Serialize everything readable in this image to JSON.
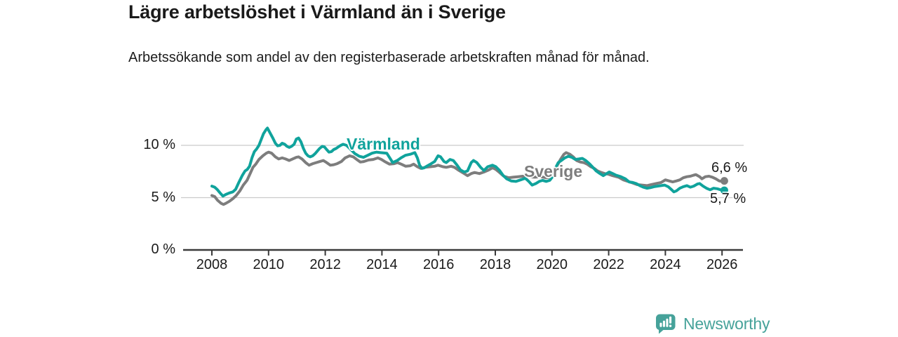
{
  "title": "Lägre arbetslöshet i Värmland än i Sverige",
  "subtitle": "Arbetssökande som andel av den registerbaserade arbetskraften månad för månad.",
  "footer": {
    "brand": "Newsworthy"
  },
  "colors": {
    "varmland": "#10a39c",
    "sverige": "#7d7d7d",
    "grid": "#cbcbcb",
    "axis": "#3a3a3a",
    "text": "#1a1a1a",
    "brand_teal": "#46a29a"
  },
  "chart_data": {
    "type": "line",
    "title": "Lägre arbetslöshet i Värmland än i Sverige",
    "xlabel": "",
    "ylabel": "Arbetssökande som andel av den registerbaserade arbetskraften",
    "xlim": [
      2007.9,
      2026.8
    ],
    "ylim": [
      0,
      12.5
    ],
    "grid": "horizontal",
    "legend_position": "inline-labels",
    "x_ticks": [
      2008,
      2010,
      2012,
      2014,
      2016,
      2018,
      2020,
      2022,
      2024,
      2026
    ],
    "y_ticks": [
      {
        "value": 0,
        "label": "0 %"
      },
      {
        "value": 5,
        "label": "5 %"
      },
      {
        "value": 10,
        "label": "10 %"
      }
    ],
    "series": [
      {
        "name": "Värmland",
        "color": "#10a39c",
        "end_label": "5,7 %",
        "last_value": 5.7,
        "points": [
          [
            2008.0,
            6.1
          ],
          [
            2008.1,
            6.0
          ],
          [
            2008.18,
            5.8
          ],
          [
            2008.29,
            5.45
          ],
          [
            2008.39,
            5.15
          ],
          [
            2008.49,
            5.3
          ],
          [
            2008.62,
            5.45
          ],
          [
            2008.74,
            5.55
          ],
          [
            2008.84,
            5.8
          ],
          [
            2008.95,
            6.45
          ],
          [
            2009.07,
            7.1
          ],
          [
            2009.17,
            7.55
          ],
          [
            2009.25,
            7.7
          ],
          [
            2009.33,
            8.0
          ],
          [
            2009.42,
            8.85
          ],
          [
            2009.5,
            9.4
          ],
          [
            2009.58,
            9.65
          ],
          [
            2009.66,
            10.0
          ],
          [
            2009.74,
            10.55
          ],
          [
            2009.82,
            11.1
          ],
          [
            2009.91,
            11.5
          ],
          [
            2009.96,
            11.65
          ],
          [
            2010.07,
            11.1
          ],
          [
            2010.15,
            10.7
          ],
          [
            2010.24,
            10.2
          ],
          [
            2010.32,
            9.95
          ],
          [
            2010.4,
            10.0
          ],
          [
            2010.48,
            10.2
          ],
          [
            2010.57,
            10.1
          ],
          [
            2010.65,
            9.9
          ],
          [
            2010.73,
            9.8
          ],
          [
            2010.81,
            9.9
          ],
          [
            2010.9,
            10.1
          ],
          [
            2010.98,
            10.6
          ],
          [
            2011.06,
            10.7
          ],
          [
            2011.14,
            10.35
          ],
          [
            2011.23,
            9.7
          ],
          [
            2011.31,
            9.25
          ],
          [
            2011.39,
            9.0
          ],
          [
            2011.47,
            8.9
          ],
          [
            2011.56,
            9.0
          ],
          [
            2011.64,
            9.2
          ],
          [
            2011.72,
            9.45
          ],
          [
            2011.8,
            9.7
          ],
          [
            2011.89,
            9.9
          ],
          [
            2011.97,
            9.85
          ],
          [
            2012.05,
            9.6
          ],
          [
            2012.13,
            9.35
          ],
          [
            2012.22,
            9.4
          ],
          [
            2012.3,
            9.6
          ],
          [
            2012.38,
            9.7
          ],
          [
            2012.46,
            9.85
          ],
          [
            2012.55,
            10.0
          ],
          [
            2012.63,
            10.1
          ],
          [
            2012.75,
            10.0
          ],
          [
            2012.9,
            9.6
          ],
          [
            2013.05,
            9.2
          ],
          [
            2013.2,
            8.95
          ],
          [
            2013.35,
            8.85
          ],
          [
            2013.5,
            9.05
          ],
          [
            2013.65,
            9.25
          ],
          [
            2013.8,
            9.35
          ],
          [
            2013.95,
            9.3
          ],
          [
            2014.17,
            9.25
          ],
          [
            2014.38,
            8.35
          ],
          [
            2014.54,
            8.55
          ],
          [
            2014.67,
            8.8
          ],
          [
            2014.83,
            9.05
          ],
          [
            2015.0,
            9.15
          ],
          [
            2015.16,
            9.3
          ],
          [
            2015.25,
            8.8
          ],
          [
            2015.33,
            8.1
          ],
          [
            2015.41,
            7.8
          ],
          [
            2015.49,
            7.85
          ],
          [
            2015.61,
            8.05
          ],
          [
            2015.74,
            8.25
          ],
          [
            2015.86,
            8.45
          ],
          [
            2015.98,
            9.0
          ],
          [
            2016.07,
            8.9
          ],
          [
            2016.19,
            8.45
          ],
          [
            2016.27,
            8.35
          ],
          [
            2016.4,
            8.65
          ],
          [
            2016.52,
            8.55
          ],
          [
            2016.65,
            8.1
          ],
          [
            2016.77,
            7.65
          ],
          [
            2016.9,
            7.45
          ],
          [
            2017.02,
            7.55
          ],
          [
            2017.15,
            8.35
          ],
          [
            2017.23,
            8.55
          ],
          [
            2017.35,
            8.35
          ],
          [
            2017.48,
            7.9
          ],
          [
            2017.6,
            7.6
          ],
          [
            2017.73,
            7.95
          ],
          [
            2017.9,
            8.1
          ],
          [
            2018.02,
            7.95
          ],
          [
            2018.15,
            7.6
          ],
          [
            2018.27,
            7.15
          ],
          [
            2018.4,
            6.8
          ],
          [
            2018.56,
            6.6
          ],
          [
            2018.73,
            6.55
          ],
          [
            2018.89,
            6.7
          ],
          [
            2019.06,
            6.85
          ],
          [
            2019.18,
            6.55
          ],
          [
            2019.3,
            6.2
          ],
          [
            2019.43,
            6.35
          ],
          [
            2019.55,
            6.55
          ],
          [
            2019.67,
            6.65
          ],
          [
            2019.8,
            6.55
          ],
          [
            2019.92,
            6.65
          ],
          [
            2020.02,
            7.0
          ],
          [
            2020.12,
            7.8
          ],
          [
            2020.22,
            8.35
          ],
          [
            2020.33,
            8.55
          ],
          [
            2020.45,
            8.8
          ],
          [
            2020.58,
            8.95
          ],
          [
            2020.7,
            8.85
          ],
          [
            2020.82,
            8.65
          ],
          [
            2020.95,
            8.7
          ],
          [
            2021.07,
            8.75
          ],
          [
            2021.19,
            8.55
          ],
          [
            2021.32,
            8.25
          ],
          [
            2021.44,
            7.9
          ],
          [
            2021.56,
            7.55
          ],
          [
            2021.69,
            7.3
          ],
          [
            2021.81,
            7.1
          ],
          [
            2021.93,
            7.3
          ],
          [
            2022.02,
            7.45
          ],
          [
            2022.14,
            7.3
          ],
          [
            2022.26,
            7.15
          ],
          [
            2022.43,
            7.0
          ],
          [
            2022.59,
            6.8
          ],
          [
            2022.72,
            6.5
          ],
          [
            2022.85,
            6.45
          ],
          [
            2022.97,
            6.35
          ],
          [
            2023.1,
            6.15
          ],
          [
            2023.22,
            6.0
          ],
          [
            2023.35,
            5.9
          ],
          [
            2023.47,
            5.95
          ],
          [
            2023.6,
            6.05
          ],
          [
            2023.72,
            6.1
          ],
          [
            2023.85,
            6.15
          ],
          [
            2023.97,
            6.2
          ],
          [
            2024.1,
            6.05
          ],
          [
            2024.22,
            5.75
          ],
          [
            2024.3,
            5.55
          ],
          [
            2024.39,
            5.65
          ],
          [
            2024.51,
            5.9
          ],
          [
            2024.63,
            6.05
          ],
          [
            2024.76,
            6.15
          ],
          [
            2024.88,
            6.0
          ],
          [
            2025.0,
            6.1
          ],
          [
            2025.13,
            6.3
          ],
          [
            2025.21,
            6.35
          ],
          [
            2025.33,
            6.1
          ],
          [
            2025.45,
            5.9
          ],
          [
            2025.58,
            5.75
          ],
          [
            2025.7,
            5.9
          ],
          [
            2025.83,
            5.85
          ],
          [
            2025.95,
            5.75
          ],
          [
            2026.08,
            5.7
          ]
        ]
      },
      {
        "name": "Sverige",
        "color": "#7d7d7d",
        "end_label": "6,6 %",
        "last_value": 6.6,
        "points": [
          [
            2008.0,
            5.2
          ],
          [
            2008.1,
            5.1
          ],
          [
            2008.2,
            4.75
          ],
          [
            2008.33,
            4.45
          ],
          [
            2008.41,
            4.35
          ],
          [
            2008.49,
            4.45
          ],
          [
            2008.62,
            4.65
          ],
          [
            2008.74,
            4.9
          ],
          [
            2008.86,
            5.2
          ],
          [
            2008.99,
            5.65
          ],
          [
            2009.11,
            6.2
          ],
          [
            2009.24,
            6.65
          ],
          [
            2009.36,
            7.35
          ],
          [
            2009.45,
            7.9
          ],
          [
            2009.55,
            8.2
          ],
          [
            2009.66,
            8.65
          ],
          [
            2009.8,
            9.0
          ],
          [
            2009.92,
            9.25
          ],
          [
            2010.0,
            9.35
          ],
          [
            2010.11,
            9.25
          ],
          [
            2010.24,
            8.9
          ],
          [
            2010.36,
            8.7
          ],
          [
            2010.48,
            8.8
          ],
          [
            2010.6,
            8.7
          ],
          [
            2010.73,
            8.55
          ],
          [
            2010.85,
            8.7
          ],
          [
            2010.98,
            8.85
          ],
          [
            2011.06,
            8.9
          ],
          [
            2011.18,
            8.7
          ],
          [
            2011.31,
            8.35
          ],
          [
            2011.43,
            8.1
          ],
          [
            2011.56,
            8.25
          ],
          [
            2011.68,
            8.35
          ],
          [
            2011.81,
            8.45
          ],
          [
            2011.93,
            8.55
          ],
          [
            2012.05,
            8.35
          ],
          [
            2012.18,
            8.1
          ],
          [
            2012.3,
            8.15
          ],
          [
            2012.42,
            8.25
          ],
          [
            2012.57,
            8.45
          ],
          [
            2012.7,
            8.8
          ],
          [
            2012.86,
            9.0
          ],
          [
            2012.99,
            8.9
          ],
          [
            2013.11,
            8.65
          ],
          [
            2013.24,
            8.4
          ],
          [
            2013.36,
            8.45
          ],
          [
            2013.53,
            8.6
          ],
          [
            2013.69,
            8.65
          ],
          [
            2013.86,
            8.8
          ],
          [
            2013.98,
            8.65
          ],
          [
            2014.1,
            8.45
          ],
          [
            2014.27,
            8.2
          ],
          [
            2014.43,
            8.25
          ],
          [
            2014.55,
            8.35
          ],
          [
            2014.68,
            8.2
          ],
          [
            2014.84,
            8.0
          ],
          [
            2015.0,
            8.05
          ],
          [
            2015.12,
            8.2
          ],
          [
            2015.25,
            7.95
          ],
          [
            2015.37,
            7.8
          ],
          [
            2015.53,
            7.9
          ],
          [
            2015.7,
            7.95
          ],
          [
            2015.86,
            8.0
          ],
          [
            2015.98,
            8.1
          ],
          [
            2016.15,
            7.95
          ],
          [
            2016.27,
            7.9
          ],
          [
            2016.44,
            8.0
          ],
          [
            2016.56,
            7.9
          ],
          [
            2016.72,
            7.6
          ],
          [
            2016.9,
            7.3
          ],
          [
            2017.02,
            7.1
          ],
          [
            2017.15,
            7.3
          ],
          [
            2017.27,
            7.4
          ],
          [
            2017.44,
            7.3
          ],
          [
            2017.6,
            7.45
          ],
          [
            2017.77,
            7.65
          ],
          [
            2017.9,
            7.85
          ],
          [
            2018.02,
            7.7
          ],
          [
            2018.15,
            7.4
          ],
          [
            2018.3,
            7.05
          ],
          [
            2018.47,
            6.9
          ],
          [
            2018.63,
            6.95
          ],
          [
            2018.8,
            7.0
          ],
          [
            2018.96,
            7.05
          ],
          [
            2019.18,
            7.0
          ],
          [
            2019.39,
            6.95
          ],
          [
            2019.59,
            7.0
          ],
          [
            2019.8,
            6.9
          ],
          [
            2019.96,
            6.95
          ],
          [
            2020.06,
            7.3
          ],
          [
            2020.17,
            8.0
          ],
          [
            2020.3,
            8.65
          ],
          [
            2020.42,
            9.15
          ],
          [
            2020.5,
            9.3
          ],
          [
            2020.63,
            9.15
          ],
          [
            2020.75,
            8.9
          ],
          [
            2020.87,
            8.55
          ],
          [
            2021.0,
            8.4
          ],
          [
            2021.12,
            8.35
          ],
          [
            2021.24,
            8.2
          ],
          [
            2021.37,
            7.95
          ],
          [
            2021.49,
            7.8
          ],
          [
            2021.61,
            7.55
          ],
          [
            2021.74,
            7.4
          ],
          [
            2021.86,
            7.3
          ],
          [
            2021.98,
            7.25
          ],
          [
            2022.14,
            7.1
          ],
          [
            2022.35,
            6.95
          ],
          [
            2022.52,
            6.7
          ],
          [
            2022.68,
            6.55
          ],
          [
            2022.85,
            6.4
          ],
          [
            2023.0,
            6.25
          ],
          [
            2023.17,
            6.2
          ],
          [
            2023.35,
            6.15
          ],
          [
            2023.5,
            6.25
          ],
          [
            2023.67,
            6.35
          ],
          [
            2023.85,
            6.45
          ],
          [
            2024.0,
            6.7
          ],
          [
            2024.13,
            6.6
          ],
          [
            2024.26,
            6.5
          ],
          [
            2024.39,
            6.6
          ],
          [
            2024.51,
            6.7
          ],
          [
            2024.63,
            6.9
          ],
          [
            2024.76,
            7.0
          ],
          [
            2024.88,
            7.05
          ],
          [
            2025.0,
            7.15
          ],
          [
            2025.08,
            7.2
          ],
          [
            2025.21,
            7.0
          ],
          [
            2025.29,
            6.8
          ],
          [
            2025.41,
            7.0
          ],
          [
            2025.54,
            7.05
          ],
          [
            2025.66,
            6.95
          ],
          [
            2025.78,
            6.8
          ],
          [
            2025.9,
            6.6
          ],
          [
            2026.0,
            6.55
          ],
          [
            2026.08,
            6.6
          ]
        ]
      }
    ]
  }
}
